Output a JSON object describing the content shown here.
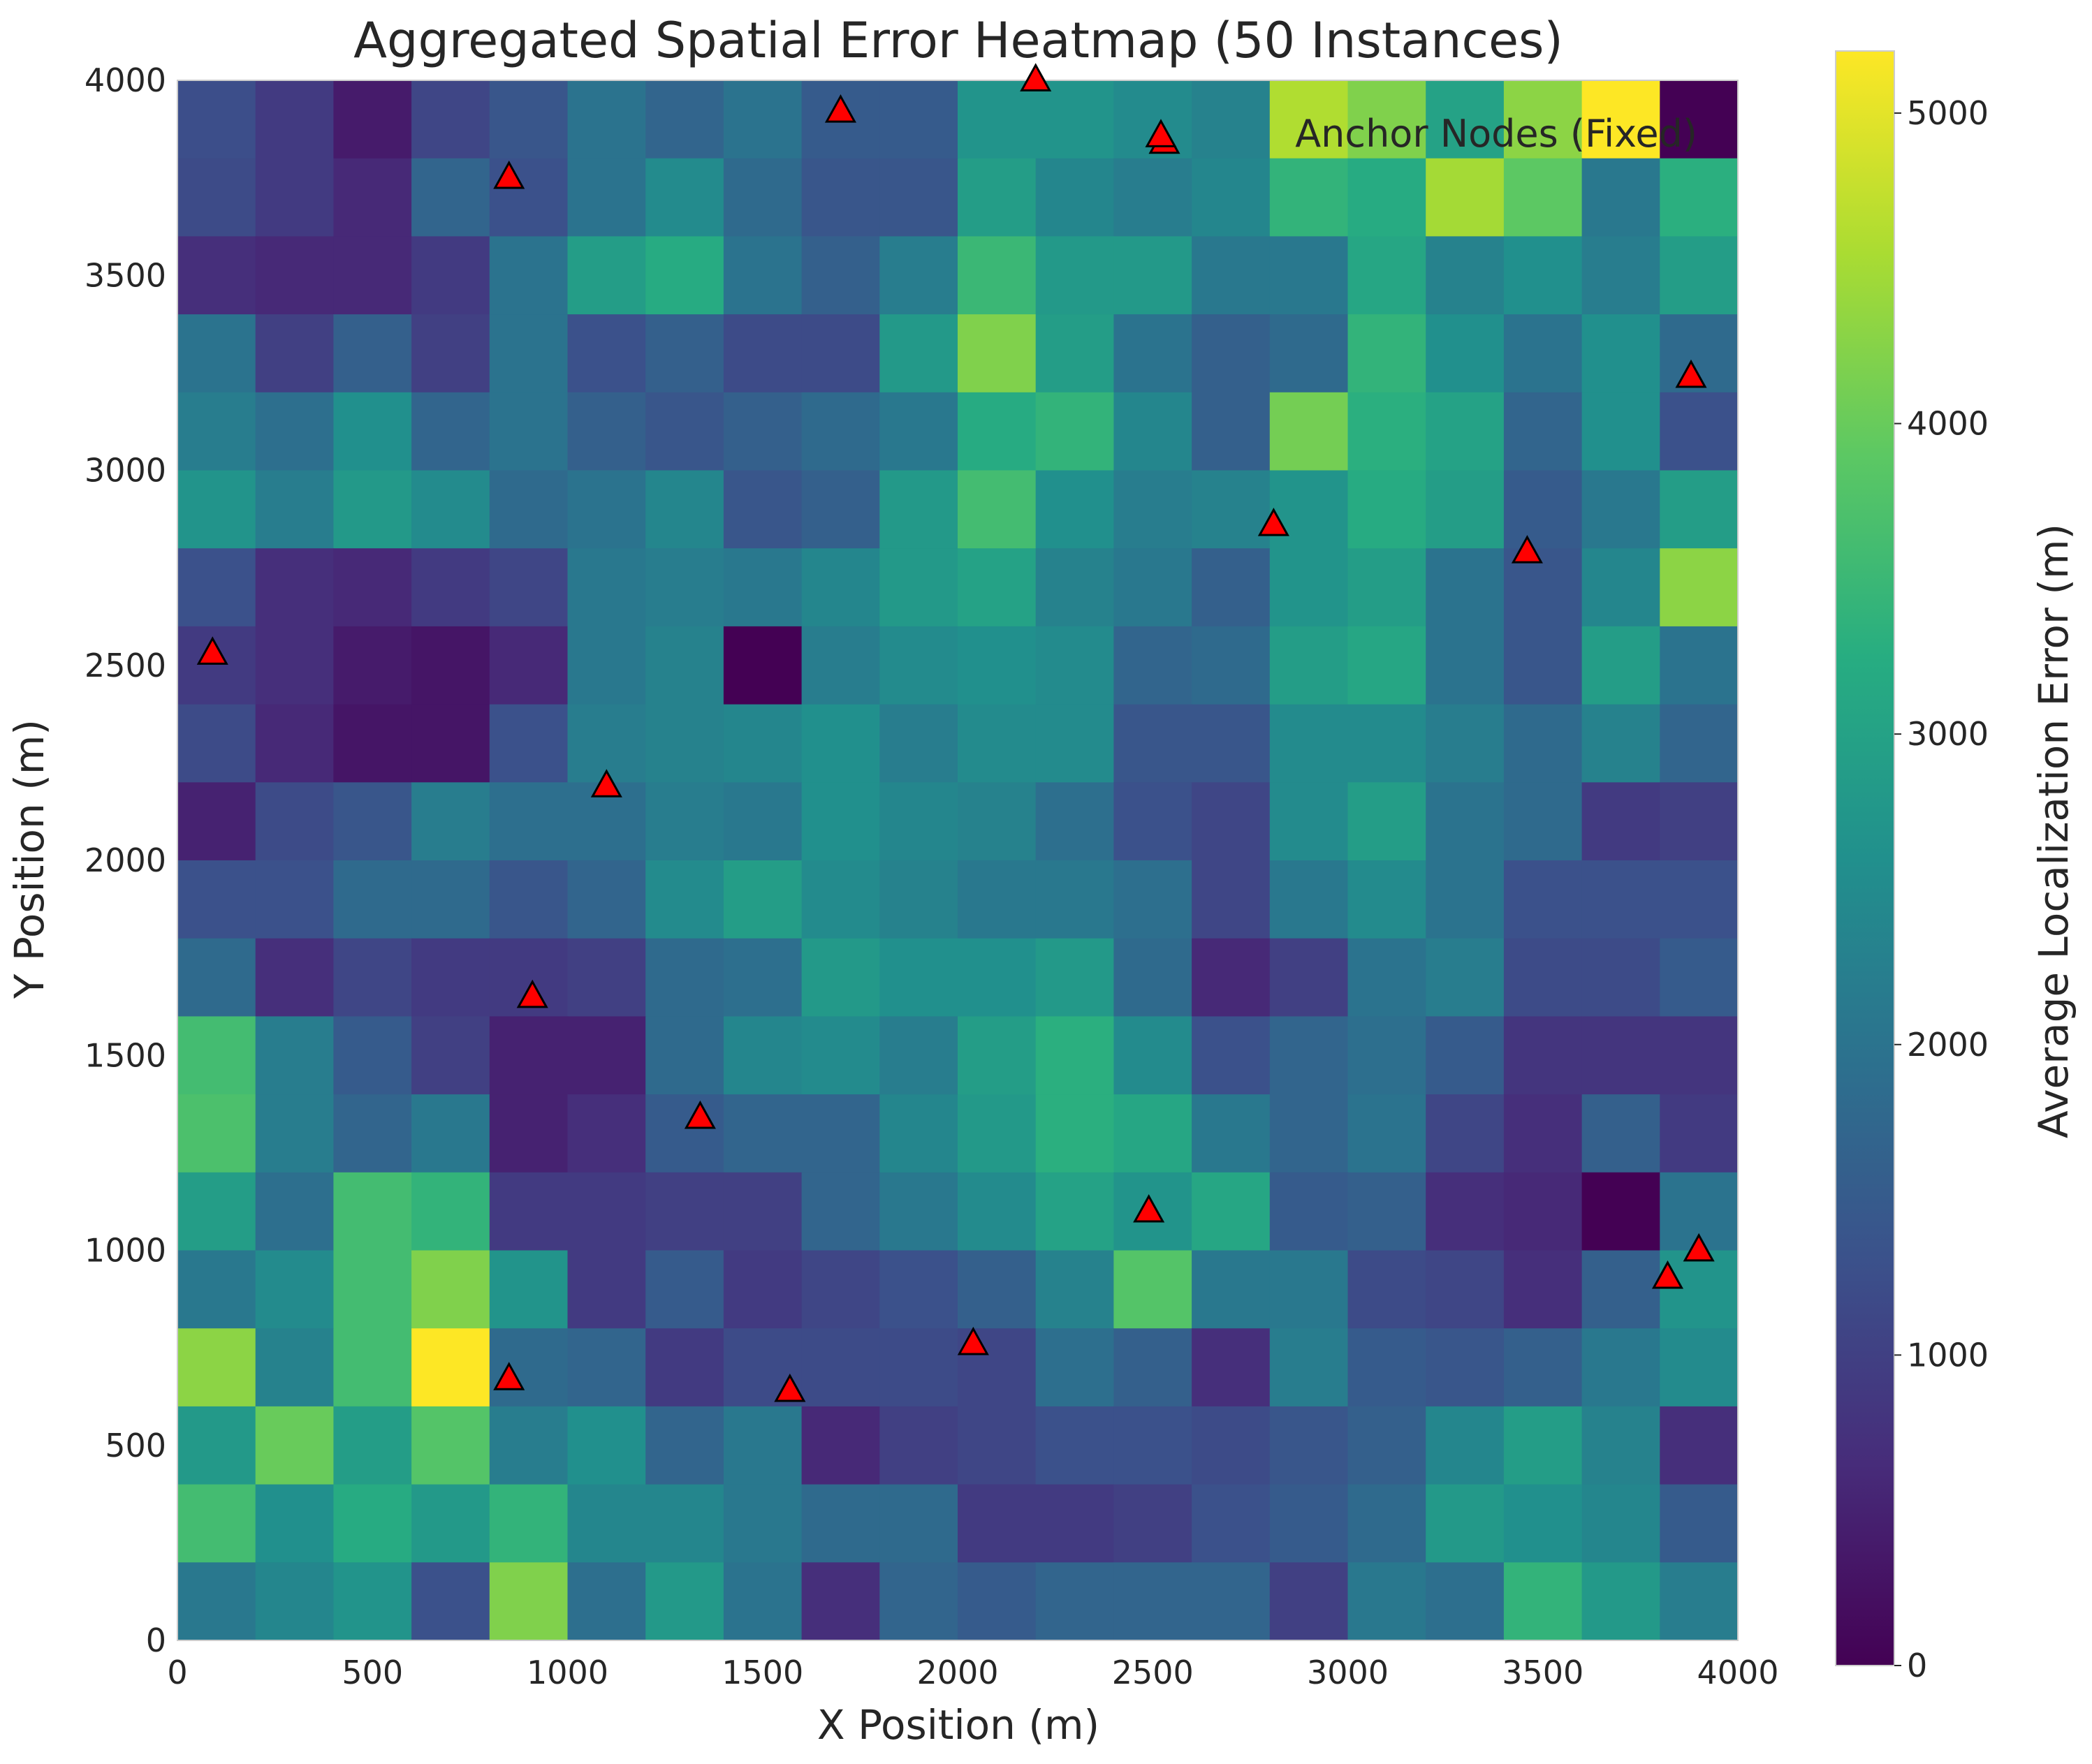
{
  "chart_data": {
    "type": "heatmap",
    "title": "Aggregated Spatial Error Heatmap (50 Instances)",
    "xlabel": "X Position (m)",
    "ylabel": "Y Position (m)",
    "xlim": [
      0,
      4000
    ],
    "ylim": [
      0,
      4000
    ],
    "x_ticks": [
      "0",
      "500",
      "1000",
      "1500",
      "2000",
      "2500",
      "3000",
      "3500",
      "4000"
    ],
    "y_ticks": [
      "0",
      "500",
      "1000",
      "1500",
      "2000",
      "2500",
      "3000",
      "3500",
      "4000"
    ],
    "grid": false,
    "cell_size_m": 200,
    "colormap": "viridis",
    "colorbar": {
      "label": "Average Localization Error (m)",
      "range": [
        0,
        5200
      ],
      "ticks": [
        "0",
        "1000",
        "2000",
        "3000",
        "4000",
        "5000"
      ]
    },
    "cells_top_to_bottom": [
      [
        1250,
        900,
        400,
        1100,
        1400,
        2000,
        1700,
        2000,
        1500,
        1500,
        2700,
        2700,
        2500,
        2300,
        4600,
        4200,
        3000,
        4300,
        5200,
        0
      ],
      [
        1200,
        900,
        600,
        1700,
        1300,
        2000,
        2500,
        1800,
        1400,
        1400,
        2900,
        2400,
        2200,
        2400,
        3400,
        3200,
        4500,
        3900,
        2100,
        3300
      ],
      [
        700,
        600,
        600,
        900,
        2000,
        2900,
        3200,
        2000,
        1600,
        2200,
        3500,
        2800,
        2800,
        2100,
        2100,
        3100,
        2300,
        2600,
        2200,
        2900
      ],
      [
        2000,
        1000,
        1600,
        1000,
        2000,
        1300,
        1600,
        1200,
        1200,
        2800,
        4200,
        2900,
        2000,
        1600,
        1800,
        3400,
        2600,
        2000,
        2600,
        1800
      ],
      [
        2200,
        1900,
        2600,
        1700,
        2000,
        1600,
        1400,
        1600,
        1800,
        2100,
        3200,
        3400,
        2400,
        1600,
        4100,
        3300,
        3000,
        1700,
        2600,
        1300
      ],
      [
        2700,
        2200,
        2800,
        2500,
        1800,
        2000,
        2400,
        1400,
        1600,
        2800,
        3600,
        2600,
        2200,
        2300,
        2700,
        3200,
        2900,
        1500,
        2100,
        2900
      ],
      [
        1300,
        700,
        600,
        900,
        1100,
        2100,
        2200,
        2100,
        2400,
        2800,
        3000,
        2300,
        2100,
        1600,
        2700,
        2900,
        2000,
        1400,
        2400,
        4300
      ],
      [
        900,
        700,
        400,
        300,
        600,
        2100,
        2300,
        0,
        2200,
        2500,
        2600,
        2500,
        1700,
        1800,
        2900,
        3100,
        2000,
        1400,
        2900,
        2000
      ],
      [
        1200,
        600,
        300,
        300,
        1300,
        2200,
        2300,
        2400,
        2600,
        2200,
        2500,
        2500,
        1400,
        1400,
        2500,
        2500,
        2200,
        1800,
        2300,
        1700
      ],
      [
        500,
        1200,
        1400,
        2200,
        1900,
        1900,
        2200,
        2100,
        2600,
        2400,
        2300,
        1900,
        1300,
        1100,
        2500,
        2900,
        2000,
        1800,
        900,
        1000
      ],
      [
        1300,
        1300,
        1800,
        1800,
        1400,
        1700,
        2500,
        2900,
        2500,
        2300,
        2100,
        2100,
        1900,
        1100,
        2100,
        2500,
        2000,
        1300,
        1300,
        1300
      ],
      [
        1800,
        700,
        1100,
        900,
        900,
        1000,
        1800,
        1900,
        2800,
        2600,
        2600,
        2800,
        1800,
        600,
        1000,
        2000,
        2200,
        1200,
        1200,
        1500
      ],
      [
        3600,
        2200,
        1500,
        1000,
        500,
        500,
        1800,
        2400,
        2500,
        2200,
        2900,
        3300,
        2500,
        1300,
        1700,
        1900,
        1500,
        800,
        800,
        800
      ],
      [
        3700,
        2200,
        1700,
        2100,
        500,
        700,
        1500,
        1700,
        1700,
        2400,
        2800,
        3300,
        3100,
        2100,
        1700,
        2000,
        1100,
        700,
        1600,
        900
      ],
      [
        2900,
        1900,
        3600,
        3400,
        900,
        900,
        1000,
        1000,
        1700,
        2100,
        2500,
        3000,
        2700,
        3100,
        1500,
        1600,
        700,
        600,
        0,
        2000
      ],
      [
        2100,
        2500,
        3600,
        4200,
        2700,
        900,
        1500,
        900,
        1100,
        1300,
        1600,
        2300,
        3800,
        2100,
        2100,
        1200,
        1100,
        700,
        1600,
        2700
      ],
      [
        4300,
        2300,
        3600,
        5200,
        1800,
        1700,
        900,
        1200,
        1200,
        1200,
        1100,
        1900,
        1600,
        700,
        2200,
        1500,
        1400,
        1600,
        2100,
        2500
      ],
      [
        2800,
        4000,
        2900,
        3800,
        2200,
        2600,
        1700,
        2100,
        600,
        1000,
        1100,
        1300,
        1300,
        1200,
        1400,
        1600,
        2400,
        2900,
        2300,
        700
      ],
      [
        3600,
        2600,
        3200,
        2800,
        3400,
        2400,
        2400,
        2100,
        1800,
        1800,
        900,
        900,
        1000,
        1300,
        1500,
        1800,
        2800,
        2600,
        2400,
        1500
      ],
      [
        2100,
        2400,
        2700,
        1300,
        4200,
        1900,
        2800,
        2000,
        700,
        1700,
        1500,
        1700,
        1700,
        1700,
        1000,
        2100,
        1900,
        3400,
        2800,
        2200
      ]
    ],
    "series": [
      {
        "name": "Anchor Nodes (Fixed)",
        "marker": "triangle",
        "color": "#ff0000",
        "points": [
          [
            2200,
            4000
          ],
          [
            1700,
            3920
          ],
          [
            2530,
            3840
          ],
          [
            850,
            3750
          ],
          [
            3880,
            3240
          ],
          [
            2810,
            2860
          ],
          [
            3460,
            2790
          ],
          [
            90,
            2530
          ],
          [
            1100,
            2190
          ],
          [
            910,
            1650
          ],
          [
            1340,
            1340
          ],
          [
            2490,
            1100
          ],
          [
            3900,
            1000
          ],
          [
            3820,
            930
          ],
          [
            2040,
            760
          ],
          [
            850,
            670
          ],
          [
            1570,
            640
          ]
        ]
      }
    ],
    "legend": {
      "placement": "top-right",
      "label": "Anchor Nodes (Fixed)"
    }
  }
}
